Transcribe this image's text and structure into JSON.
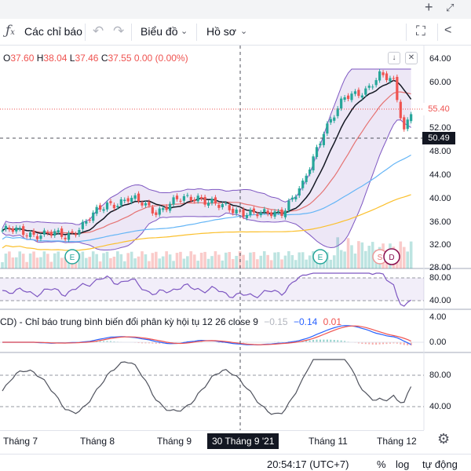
{
  "window": {
    "plus_icon": "plus-icon",
    "expand_icon": "expand-icon"
  },
  "toolbar": {
    "indicators_label": "Các chỉ báo",
    "chart_label": "Biểu đồ",
    "profile_label": "Hồ sơ"
  },
  "legend": {
    "o_label": "O",
    "o_value": "37.60",
    "h_label": "H",
    "h_value": "38.04",
    "l_label": "L",
    "l_value": "37.46",
    "c_label": "C",
    "c_value": "37.55",
    "change": "0.00 (0.00%)"
  },
  "price_axis": {
    "ticks": [
      "64.00",
      "60.00",
      "52.00",
      "48.00",
      "44.00",
      "40.00",
      "36.00",
      "32.00",
      "28.00"
    ],
    "last_price": "55.40",
    "crosshair_price": "50.49"
  },
  "rsi_axis": {
    "ticks": [
      "80.00",
      "40.00"
    ]
  },
  "macd": {
    "title": "CD) - Chỉ báo trung bình biến đổi phân kỳ hội tụ 12 26 close 9",
    "v1": "−0.15",
    "v2": "−0.14",
    "v3": "0.01",
    "ticks": [
      "4.00",
      "0.00"
    ]
  },
  "stoch_axis": {
    "ticks": [
      "80.00",
      "40.00"
    ]
  },
  "time_axis": {
    "ticks": [
      "Tháng 7",
      "Tháng 8",
      "Tháng 9",
      "Tháng 11",
      "Tháng 12"
    ],
    "crosshair": "30 Tháng 9 '21"
  },
  "event_markers": [
    "E",
    "E",
    "S",
    "D"
  ],
  "status": {
    "time": "20:54:17 (UTC+7)",
    "percent": "%",
    "log": "log",
    "auto": "tự động"
  },
  "colors": {
    "up": "#26a69a",
    "down": "#ef5350",
    "bollinger": "#7e57c2",
    "ma_fast": "#131722",
    "ma_mid": "#e57373",
    "ma_slow": "#64b5f6",
    "ma_long": "#fbc02d"
  }
}
